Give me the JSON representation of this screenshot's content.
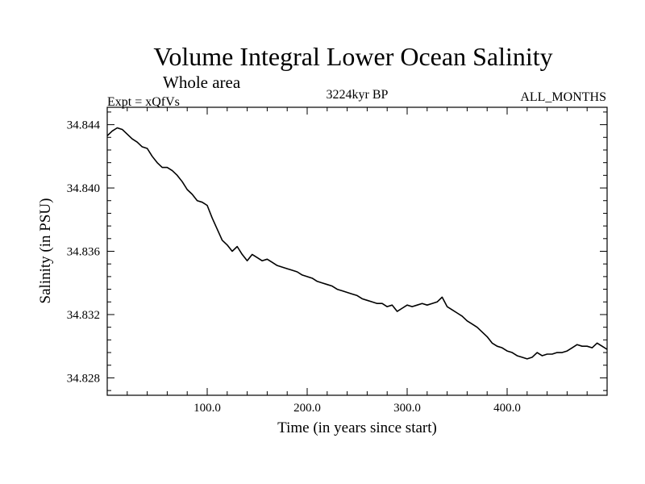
{
  "chart_data": {
    "type": "line",
    "title": "Volume Integral Lower Ocean Salinity",
    "subtitle": "Whole area",
    "expt_label": "Expt = xQfVs",
    "period_label": "3224kyr BP",
    "months_label": "ALL_MONTHS",
    "xlabel": "Time (in years since start)",
    "ylabel": "Salinity (in PSU)",
    "xlim": [
      0,
      500
    ],
    "ylim": [
      34.8269,
      34.8451
    ],
    "x_ticks": [
      100,
      200,
      300,
      400
    ],
    "x_tick_labels": [
      "100.0",
      "200.0",
      "300.0",
      "400.0"
    ],
    "y_ticks": [
      34.828,
      34.832,
      34.836,
      34.84,
      34.844
    ],
    "y_tick_labels": [
      "34.828",
      "34.832",
      "34.836",
      "34.840",
      "34.844"
    ],
    "grid": false,
    "series": [
      {
        "name": "Salinity",
        "x": [
          0,
          5,
          10,
          15,
          20,
          25,
          30,
          35,
          40,
          45,
          50,
          55,
          60,
          65,
          70,
          75,
          80,
          85,
          90,
          95,
          100,
          105,
          110,
          115,
          120,
          125,
          130,
          135,
          140,
          145,
          150,
          155,
          160,
          165,
          170,
          175,
          180,
          185,
          190,
          195,
          200,
          205,
          210,
          215,
          220,
          225,
          230,
          235,
          240,
          245,
          250,
          255,
          260,
          265,
          270,
          275,
          280,
          285,
          290,
          295,
          300,
          305,
          310,
          315,
          320,
          325,
          330,
          335,
          340,
          345,
          350,
          355,
          360,
          365,
          370,
          375,
          380,
          385,
          390,
          395,
          400,
          405,
          410,
          415,
          420,
          425,
          430,
          435,
          440,
          445,
          450,
          455,
          460,
          465,
          470,
          475,
          480,
          485,
          490,
          495,
          500
        ],
        "values": [
          34.8433,
          34.8436,
          34.8438,
          34.8437,
          34.8434,
          34.8431,
          34.8429,
          34.8426,
          34.8425,
          34.842,
          34.8416,
          34.8413,
          34.8413,
          34.8411,
          34.8408,
          34.8404,
          34.8399,
          34.8396,
          34.8392,
          34.8391,
          34.8389,
          34.8381,
          34.8374,
          34.8367,
          34.8364,
          34.836,
          34.8363,
          34.8358,
          34.8354,
          34.8358,
          34.8356,
          34.8354,
          34.8355,
          34.8353,
          34.8351,
          34.835,
          34.8349,
          34.8348,
          34.8347,
          34.8345,
          34.8344,
          34.8343,
          34.8341,
          34.834,
          34.8339,
          34.8338,
          34.8336,
          34.8335,
          34.8334,
          34.8333,
          34.8332,
          34.833,
          34.8329,
          34.8328,
          34.8327,
          34.8327,
          34.8325,
          34.8326,
          34.8322,
          34.8324,
          34.8326,
          34.8325,
          34.8326,
          34.8327,
          34.8326,
          34.8327,
          34.8328,
          34.8331,
          34.8325,
          34.8323,
          34.8321,
          34.8319,
          34.8316,
          34.8314,
          34.8312,
          34.8309,
          34.8306,
          34.8302,
          34.83,
          34.8299,
          34.8297,
          34.8296,
          34.8294,
          34.8293,
          34.8292,
          34.8293,
          34.8296,
          34.8294,
          34.8295,
          34.8295,
          34.8296,
          34.8296,
          34.8297,
          34.8299,
          34.8301,
          34.83,
          34.83,
          34.8299,
          34.8302,
          34.83,
          34.8298
        ]
      }
    ]
  }
}
